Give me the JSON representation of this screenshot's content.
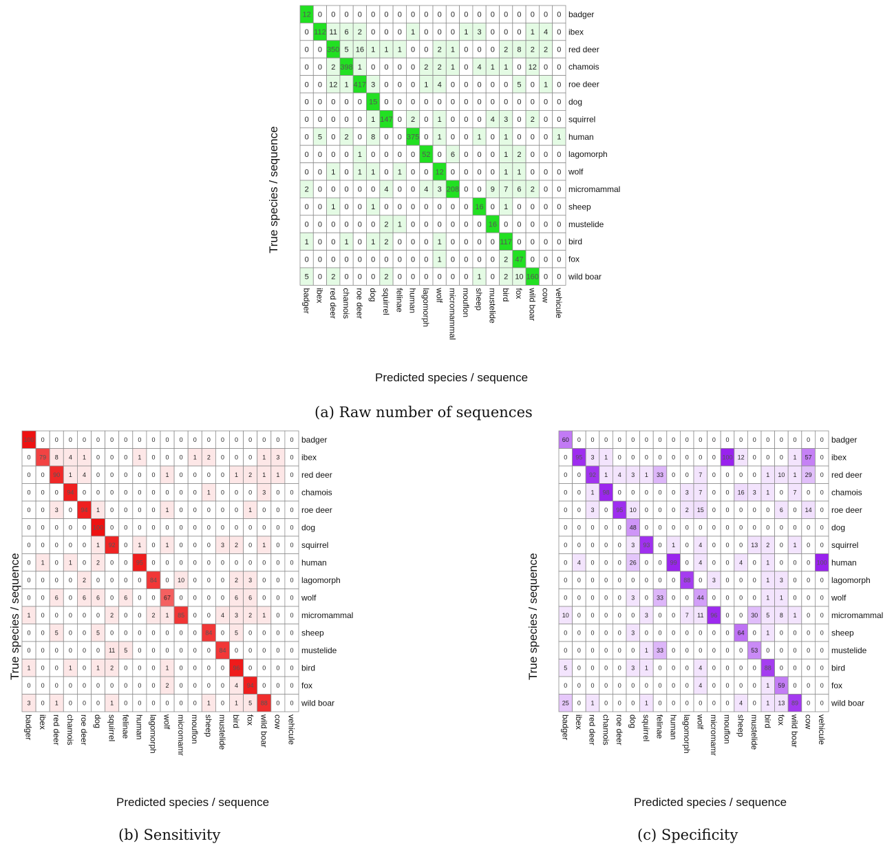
{
  "figure": {
    "captions": {
      "a": "(a) Raw number of sequences",
      "b": "(b) Sensitivity",
      "c": "(c) Specificity"
    },
    "xlabel": "Predicted species / sequence",
    "ylabel": "True species / sequence"
  },
  "chart_data": [
    {
      "type": "heatmap",
      "id": "a",
      "title": "(a) Raw number of sequences",
      "xlabel": "Predicted species / sequence",
      "ylabel": "True species / sequence",
      "color": "#22e022",
      "x": [
        "badger",
        "ibex",
        "red deer",
        "chamois",
        "roe deer",
        "dog",
        "squirrel",
        "felinae",
        "human",
        "lagomorph",
        "wolf",
        "micromammal",
        "mouflon",
        "sheep",
        "mustelide",
        "bird",
        "fox",
        "wild boar",
        "cow",
        "vehicule"
      ],
      "y": [
        "badger",
        "ibex",
        "red deer",
        "chamois",
        "roe deer",
        "dog",
        "squirrel",
        "human",
        "lagomorph",
        "wolf",
        "micromammal",
        "sheep",
        "mustelide",
        "bird",
        "fox",
        "wild boar"
      ],
      "values": [
        [
          12,
          0,
          0,
          0,
          0,
          0,
          0,
          0,
          0,
          0,
          0,
          0,
          0,
          0,
          0,
          0,
          0,
          0,
          0,
          0
        ],
        [
          0,
          112,
          11,
          6,
          2,
          0,
          0,
          0,
          1,
          0,
          0,
          0,
          1,
          3,
          0,
          0,
          0,
          1,
          4,
          0
        ],
        [
          0,
          0,
          350,
          5,
          16,
          1,
          1,
          1,
          0,
          0,
          2,
          1,
          0,
          0,
          0,
          2,
          8,
          2,
          2,
          0
        ],
        [
          0,
          0,
          2,
          398,
          1,
          0,
          0,
          0,
          0,
          2,
          2,
          1,
          0,
          4,
          1,
          1,
          0,
          12,
          0,
          0
        ],
        [
          0,
          0,
          12,
          1,
          417,
          3,
          0,
          0,
          0,
          1,
          4,
          0,
          0,
          0,
          0,
          0,
          5,
          0,
          1,
          0
        ],
        [
          0,
          0,
          0,
          0,
          0,
          15,
          0,
          0,
          0,
          0,
          0,
          0,
          0,
          0,
          0,
          0,
          0,
          0,
          0,
          0
        ],
        [
          0,
          0,
          0,
          0,
          0,
          1,
          147,
          0,
          2,
          0,
          1,
          0,
          0,
          0,
          4,
          3,
          0,
          2,
          0,
          0
        ],
        [
          0,
          5,
          0,
          2,
          0,
          8,
          0,
          0,
          375,
          0,
          1,
          0,
          0,
          1,
          0,
          1,
          0,
          0,
          0,
          1
        ],
        [
          0,
          0,
          0,
          0,
          1,
          0,
          0,
          0,
          0,
          52,
          0,
          6,
          0,
          0,
          0,
          1,
          2,
          0,
          0,
          0
        ],
        [
          0,
          0,
          1,
          0,
          1,
          1,
          0,
          1,
          0,
          0,
          12,
          0,
          0,
          0,
          0,
          1,
          1,
          0,
          0,
          0
        ],
        [
          2,
          0,
          0,
          0,
          0,
          0,
          4,
          0,
          0,
          4,
          3,
          208,
          0,
          0,
          9,
          7,
          6,
          2,
          0,
          0
        ],
        [
          0,
          0,
          1,
          0,
          0,
          1,
          0,
          0,
          0,
          0,
          0,
          0,
          0,
          16,
          0,
          1,
          0,
          0,
          0,
          0
        ],
        [
          0,
          0,
          0,
          0,
          0,
          0,
          2,
          1,
          0,
          0,
          0,
          0,
          0,
          0,
          16,
          0,
          0,
          0,
          0,
          0
        ],
        [
          1,
          0,
          0,
          1,
          0,
          1,
          2,
          0,
          0,
          0,
          1,
          0,
          0,
          0,
          0,
          117,
          0,
          0,
          0,
          0
        ],
        [
          0,
          0,
          0,
          0,
          0,
          0,
          0,
          0,
          0,
          0,
          1,
          0,
          0,
          0,
          0,
          2,
          47,
          0,
          0,
          0
        ],
        [
          5,
          0,
          2,
          0,
          0,
          0,
          2,
          0,
          0,
          0,
          0,
          0,
          0,
          1,
          0,
          2,
          10,
          160,
          0,
          0
        ]
      ]
    },
    {
      "type": "heatmap",
      "id": "b",
      "title": "(b) Sensitivity",
      "xlabel": "Predicted species / sequence",
      "ylabel": "True species / sequence",
      "color": "#ee1111",
      "x": [
        "badger",
        "ibex",
        "red deer",
        "chamois",
        "roe deer",
        "dog",
        "squirrel",
        "felinae",
        "human",
        "lagomorph",
        "wolf",
        "micromammal",
        "mouflon",
        "sheep",
        "mustelide",
        "bird",
        "fox",
        "wild boar",
        "cow",
        "vehicule"
      ],
      "y": [
        "badger",
        "ibex",
        "red deer",
        "chamois",
        "roe deer",
        "dog",
        "squirrel",
        "human",
        "lagomorph",
        "wolf",
        "micromammal",
        "sheep",
        "mustelide",
        "bird",
        "fox",
        "wild boar"
      ],
      "values": [
        [
          100,
          0,
          0,
          0,
          0,
          0,
          0,
          0,
          0,
          0,
          0,
          0,
          0,
          0,
          0,
          0,
          0,
          0,
          0,
          0
        ],
        [
          0,
          79,
          8,
          4,
          1,
          0,
          0,
          0,
          1,
          0,
          0,
          0,
          1,
          2,
          0,
          0,
          0,
          1,
          3,
          0
        ],
        [
          0,
          0,
          90,
          1,
          4,
          0,
          0,
          0,
          0,
          0,
          1,
          0,
          0,
          0,
          0,
          1,
          2,
          1,
          1,
          0
        ],
        [
          0,
          0,
          0,
          94,
          0,
          0,
          0,
          0,
          0,
          0,
          0,
          0,
          0,
          1,
          0,
          0,
          0,
          3,
          0,
          0
        ],
        [
          0,
          0,
          3,
          0,
          94,
          1,
          0,
          0,
          0,
          0,
          1,
          0,
          0,
          0,
          0,
          0,
          1,
          0,
          0,
          0
        ],
        [
          0,
          0,
          0,
          0,
          0,
          100,
          0,
          0,
          0,
          0,
          0,
          0,
          0,
          0,
          0,
          0,
          0,
          0,
          0,
          0
        ],
        [
          0,
          0,
          0,
          0,
          0,
          1,
          92,
          0,
          1,
          0,
          1,
          0,
          0,
          0,
          3,
          2,
          0,
          1,
          0,
          0
        ],
        [
          0,
          1,
          0,
          1,
          0,
          2,
          0,
          0,
          95,
          0,
          0,
          0,
          0,
          0,
          0,
          0,
          0,
          0,
          0,
          0
        ],
        [
          0,
          0,
          0,
          0,
          2,
          0,
          0,
          0,
          0,
          84,
          0,
          10,
          0,
          0,
          0,
          2,
          3,
          0,
          0,
          0
        ],
        [
          0,
          0,
          6,
          0,
          6,
          6,
          0,
          6,
          0,
          0,
          67,
          0,
          0,
          0,
          0,
          6,
          6,
          0,
          0,
          0
        ],
        [
          1,
          0,
          0,
          0,
          0,
          0,
          2,
          0,
          0,
          2,
          1,
          85,
          0,
          0,
          4,
          3,
          2,
          1,
          0,
          0
        ],
        [
          0,
          0,
          5,
          0,
          0,
          5,
          0,
          0,
          0,
          0,
          0,
          0,
          0,
          84,
          0,
          5,
          0,
          0,
          0,
          0
        ],
        [
          0,
          0,
          0,
          0,
          0,
          0,
          11,
          5,
          0,
          0,
          0,
          0,
          0,
          0,
          84,
          0,
          0,
          0,
          0,
          0
        ],
        [
          1,
          0,
          0,
          1,
          0,
          1,
          2,
          0,
          0,
          0,
          1,
          0,
          0,
          0,
          0,
          96,
          0,
          0,
          0,
          0
        ],
        [
          0,
          0,
          0,
          0,
          0,
          0,
          0,
          0,
          0,
          0,
          2,
          0,
          0,
          0,
          0,
          4,
          94,
          0,
          0,
          0
        ],
        [
          3,
          0,
          1,
          0,
          0,
          0,
          1,
          0,
          0,
          0,
          0,
          0,
          0,
          1,
          0,
          1,
          5,
          88,
          0,
          0
        ]
      ]
    },
    {
      "type": "heatmap",
      "id": "c",
      "title": "(c) Specificity",
      "xlabel": "Predicted species / sequence",
      "ylabel": "True species / sequence",
      "color": "#9922ee",
      "x": [
        "badger",
        "ibex",
        "red deer",
        "chamois",
        "roe deer",
        "dog",
        "squirrel",
        "felinae",
        "human",
        "lagomorph",
        "wolf",
        "micromammal",
        "mouflon",
        "sheep",
        "mustelide",
        "bird",
        "fox",
        "wild boar",
        "cow",
        "vehicule"
      ],
      "y": [
        "badger",
        "ibex",
        "red deer",
        "chamois",
        "roe deer",
        "dog",
        "squirrel",
        "human",
        "lagomorph",
        "wolf",
        "micromammal",
        "sheep",
        "mustelide",
        "bird",
        "fox",
        "wild boar"
      ],
      "values": [
        [
          60,
          0,
          0,
          0,
          0,
          0,
          0,
          0,
          0,
          0,
          0,
          0,
          0,
          0,
          0,
          0,
          0,
          0,
          0,
          0
        ],
        [
          0,
          95,
          3,
          1,
          0,
          0,
          0,
          0,
          0,
          0,
          0,
          0,
          100,
          12,
          0,
          0,
          0,
          1,
          57,
          0
        ],
        [
          0,
          0,
          92,
          1,
          4,
          3,
          1,
          33,
          0,
          0,
          7,
          0,
          0,
          0,
          0,
          1,
          10,
          1,
          29,
          0
        ],
        [
          0,
          0,
          1,
          98,
          0,
          0,
          0,
          0,
          0,
          3,
          7,
          0,
          0,
          16,
          3,
          1,
          0,
          7,
          0,
          0
        ],
        [
          0,
          0,
          3,
          0,
          95,
          10,
          0,
          0,
          0,
          2,
          15,
          0,
          0,
          0,
          0,
          0,
          6,
          0,
          14,
          0
        ],
        [
          0,
          0,
          0,
          0,
          0,
          48,
          0,
          0,
          0,
          0,
          0,
          0,
          0,
          0,
          0,
          0,
          0,
          0,
          0,
          0
        ],
        [
          0,
          0,
          0,
          0,
          0,
          3,
          93,
          0,
          1,
          0,
          4,
          0,
          0,
          0,
          13,
          2,
          0,
          1,
          0,
          0
        ],
        [
          0,
          4,
          0,
          0,
          0,
          26,
          0,
          0,
          99,
          0,
          4,
          0,
          0,
          4,
          0,
          1,
          0,
          0,
          0,
          100
        ],
        [
          0,
          0,
          0,
          0,
          0,
          0,
          0,
          0,
          0,
          88,
          0,
          3,
          0,
          0,
          0,
          1,
          3,
          0,
          0,
          0
        ],
        [
          0,
          0,
          0,
          0,
          0,
          3,
          0,
          33,
          0,
          0,
          44,
          0,
          0,
          0,
          0,
          1,
          1,
          0,
          0,
          0
        ],
        [
          10,
          0,
          0,
          0,
          0,
          0,
          3,
          0,
          0,
          7,
          11,
          96,
          0,
          0,
          30,
          5,
          8,
          1,
          0,
          0
        ],
        [
          0,
          0,
          0,
          0,
          0,
          3,
          0,
          0,
          0,
          0,
          0,
          0,
          0,
          64,
          0,
          1,
          0,
          0,
          0,
          0
        ],
        [
          0,
          0,
          0,
          0,
          0,
          0,
          1,
          33,
          0,
          0,
          0,
          0,
          0,
          0,
          53,
          0,
          0,
          0,
          0,
          0
        ],
        [
          5,
          0,
          0,
          0,
          0,
          3,
          1,
          0,
          0,
          0,
          4,
          0,
          0,
          0,
          0,
          88,
          0,
          0,
          0,
          0
        ],
        [
          0,
          0,
          0,
          0,
          0,
          0,
          0,
          0,
          0,
          0,
          4,
          0,
          0,
          0,
          0,
          1,
          59,
          0,
          0,
          0
        ],
        [
          25,
          0,
          1,
          0,
          0,
          0,
          1,
          0,
          0,
          0,
          0,
          0,
          0,
          4,
          0,
          1,
          13,
          89,
          0,
          0
        ]
      ]
    }
  ]
}
